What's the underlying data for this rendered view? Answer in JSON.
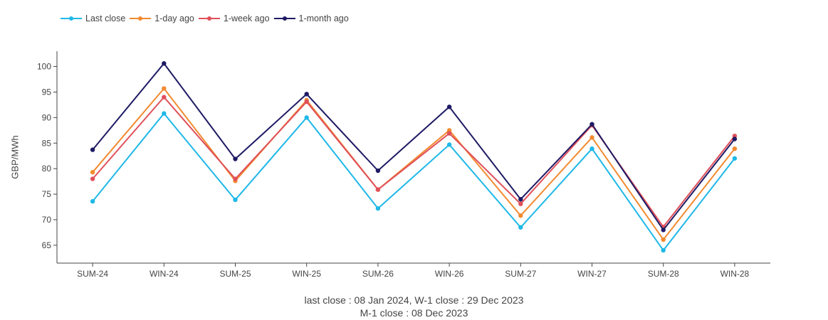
{
  "chart_data": {
    "type": "line",
    "categories": [
      "SUM-24",
      "WIN-24",
      "SUM-25",
      "WIN-25",
      "SUM-26",
      "WIN-26",
      "SUM-27",
      "WIN-27",
      "SUM-28",
      "WIN-28"
    ],
    "series": [
      {
        "name": "Last close",
        "color": "#1fb8e8",
        "values": [
          73.6,
          90.8,
          73.9,
          90.0,
          72.2,
          84.7,
          68.5,
          83.9,
          64.0,
          82.0
        ]
      },
      {
        "name": "1-day ago",
        "color": "#f28a30",
        "values": [
          79.3,
          95.7,
          77.6,
          93.4,
          75.9,
          87.5,
          70.8,
          86.1,
          66.1,
          83.9
        ]
      },
      {
        "name": "1-week ago",
        "color": "#e0505a",
        "values": [
          78.0,
          94.0,
          78.0,
          93.1,
          75.9,
          86.9,
          73.1,
          88.5,
          68.6,
          86.4
        ]
      },
      {
        "name": "1-month ago",
        "color": "#1e1a64",
        "values": [
          83.7,
          100.6,
          81.9,
          94.6,
          79.6,
          92.1,
          74.0,
          88.7,
          68.0,
          85.8
        ]
      }
    ],
    "xlabel": "",
    "ylabel": "GBP/MWh",
    "ylim": [
      61.5,
      103
    ],
    "yticks": [
      65,
      70,
      75,
      80,
      85,
      90,
      95,
      100
    ],
    "legend": "top-left",
    "grid": false,
    "footnote_line1": "last close : 08 Jan 2024, W-1 close : 29 Dec 2023",
    "footnote_line2": "M-1 close : 08 Dec 2023"
  }
}
